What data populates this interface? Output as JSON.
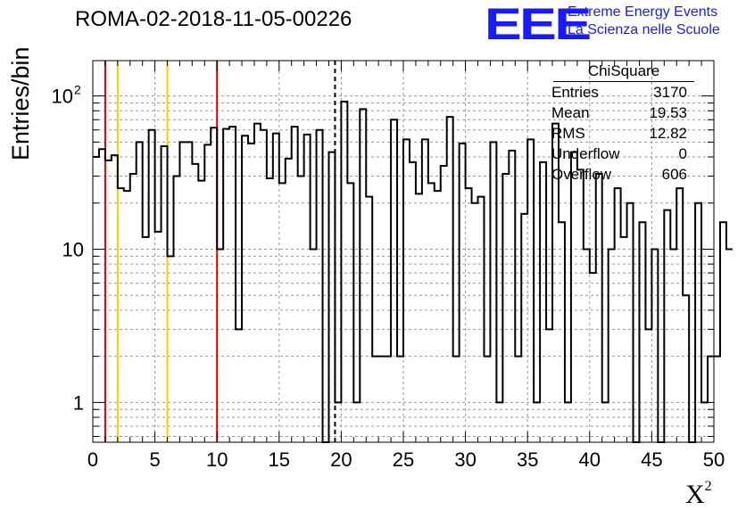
{
  "title": "ROMA-02-2018-11-05-00226",
  "logo": {
    "text": "EEE",
    "line1": "Extreme Energy Events",
    "line2": "La Scienza nelle Scuole",
    "color": "#1a1aff"
  },
  "stats": {
    "title": "ChiSquare",
    "rows": [
      {
        "key": "Entries",
        "value": "3170"
      },
      {
        "key": "Mean",
        "value": "19.53"
      },
      {
        "key": "RMS",
        "value": "12.82"
      },
      {
        "key": "Underflow",
        "value": "0"
      },
      {
        "key": "Overflow",
        "value": "606"
      }
    ]
  },
  "chart_data": {
    "type": "histogram",
    "title": "ROMA-02-2018-11-05-00226",
    "xlabel": "X",
    "xlabel_superscript": "2",
    "ylabel": "Entries/bin",
    "xlim": [
      0,
      50
    ],
    "ylim": [
      0.55,
      170
    ],
    "y_scale": "log",
    "grid": true,
    "bin_width": 0.5,
    "x_ticks": [
      "0",
      "5",
      "10",
      "15",
      "20",
      "25",
      "30",
      "35",
      "40",
      "45",
      "50"
    ],
    "y_ticks": [
      {
        "value": 1,
        "label": "1"
      },
      {
        "value": 10,
        "label": "10"
      },
      {
        "value": 100,
        "label": "10",
        "exponent": "2"
      }
    ],
    "values": [
      40,
      45,
      38,
      41,
      25,
      24,
      31,
      50,
      12,
      60,
      13,
      47,
      9,
      30,
      50,
      50,
      36,
      28,
      48,
      62,
      10,
      61,
      63,
      3,
      55,
      49,
      66,
      60,
      29,
      57,
      27,
      39,
      63,
      30,
      56,
      10,
      60,
      0.5,
      43,
      1,
      92,
      27,
      1,
      82,
      22,
      2,
      2,
      2,
      70,
      2,
      52,
      37,
      23,
      52,
      27,
      24,
      35,
      73,
      2,
      49,
      25,
      20,
      22,
      2,
      50,
      1,
      31,
      44,
      2,
      17,
      52,
      1,
      37,
      3,
      66,
      15,
      1,
      43,
      33,
      10,
      7,
      31,
      1,
      10,
      25,
      12,
      20,
      0.5,
      15,
      3,
      10,
      0.5,
      18,
      10,
      25,
      5,
      0.5,
      20,
      1,
      2,
      2,
      15,
      10
    ],
    "vertical_lines": [
      {
        "x": 1,
        "color": "#e00000",
        "style": "solid"
      },
      {
        "x": 2,
        "color": "#ffcc00",
        "style": "solid"
      },
      {
        "x": 6,
        "color": "#ffcc00",
        "style": "solid"
      },
      {
        "x": 10,
        "color": "#e00000",
        "style": "solid"
      },
      {
        "x": 19.5,
        "color": "#000000",
        "style": "dashed"
      }
    ]
  }
}
